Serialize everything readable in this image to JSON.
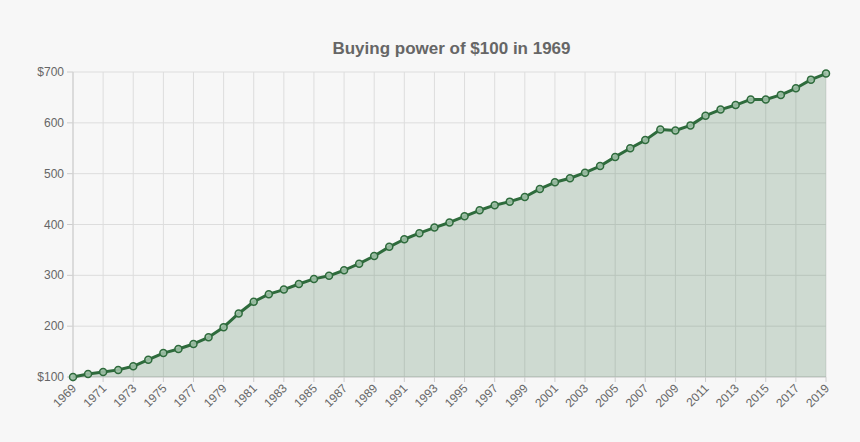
{
  "chart_data": {
    "type": "line",
    "title": "Buying power of $100 in 1969",
    "x": [
      1969,
      1970,
      1971,
      1972,
      1973,
      1974,
      1975,
      1976,
      1977,
      1978,
      1979,
      1980,
      1981,
      1982,
      1983,
      1984,
      1985,
      1986,
      1987,
      1988,
      1989,
      1990,
      1991,
      1992,
      1993,
      1994,
      1995,
      1996,
      1997,
      1998,
      1999,
      2000,
      2001,
      2002,
      2003,
      2004,
      2005,
      2006,
      2007,
      2008,
      2009,
      2010,
      2011,
      2012,
      2013,
      2014,
      2015,
      2016,
      2017,
      2018,
      2019
    ],
    "series": [
      {
        "name": "Buying power",
        "color": "#2e6b3c",
        "marker": "circle",
        "values": [
          100,
          106,
          110,
          114,
          121,
          134,
          147,
          155,
          165,
          178,
          198,
          225,
          248,
          263,
          272,
          283,
          293,
          299,
          310,
          323,
          338,
          356,
          371,
          383,
          394,
          404,
          416,
          428,
          438,
          445,
          454,
          470,
          483,
          491,
          502,
          515,
          533,
          550,
          566,
          587,
          585,
          595,
          614,
          626,
          635,
          646,
          646,
          655,
          668,
          685,
          697
        ]
      }
    ],
    "xlim": [
      1969,
      2019
    ],
    "xticks": [
      1969,
      1971,
      1973,
      1975,
      1977,
      1979,
      1981,
      1983,
      1985,
      1987,
      1989,
      1991,
      1993,
      1995,
      1997,
      1999,
      2001,
      2003,
      2005,
      2007,
      2009,
      2011,
      2013,
      2015,
      2017,
      2019
    ],
    "ylim": [
      100,
      700
    ],
    "yticks": [
      {
        "value": 100,
        "label": "$100"
      },
      200,
      300,
      400,
      500,
      600,
      {
        "value": 700,
        "label": "$700"
      }
    ],
    "grid": true
  }
}
